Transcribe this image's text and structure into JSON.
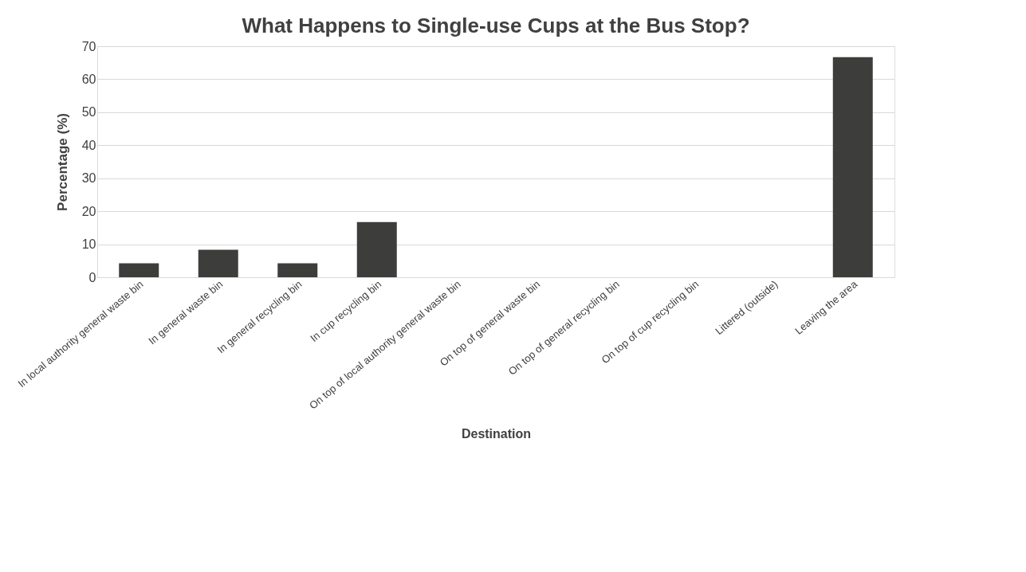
{
  "chart_data": {
    "type": "bar",
    "title": "What Happens to Single-use Cups at the Bus Stop?",
    "xlabel": "Destination",
    "ylabel": "Percentage (%)",
    "categories": [
      "In local authority general waste bin",
      "In general waste bin",
      "In general recycling bin",
      "In cup recycling bin",
      "On top of local authority general waste bin",
      "On top of general waste bin",
      "On top of general recycling bin",
      "On top of cup recycling bin",
      "Littered (outside)",
      "Leaving the area"
    ],
    "values": [
      4.2,
      8.3,
      4.2,
      16.7,
      0,
      0,
      0,
      0,
      0,
      66.7
    ],
    "color": "#3d3d3b",
    "ylim": [
      0,
      70
    ],
    "yticks": [
      0,
      10,
      20,
      30,
      40,
      50,
      60,
      70
    ],
    "grid": "y"
  }
}
